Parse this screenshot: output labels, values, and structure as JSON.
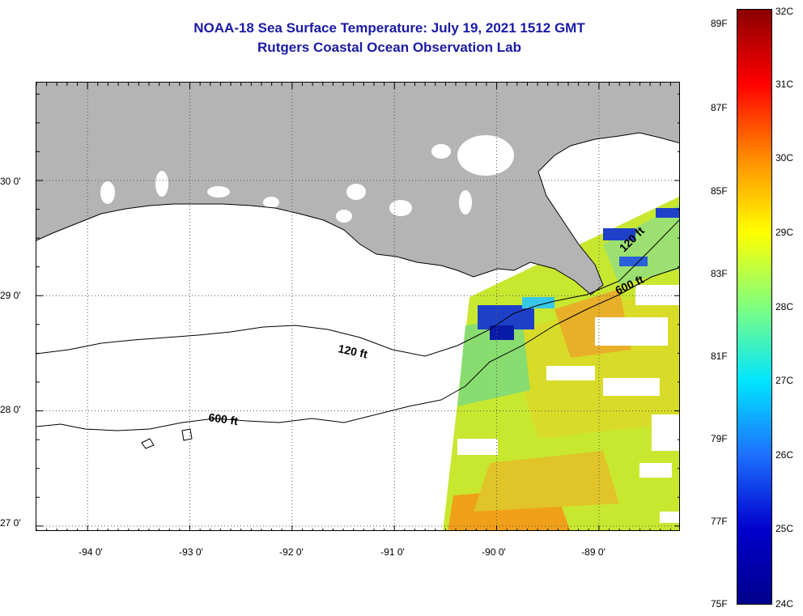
{
  "header": {
    "title": "NOAA-18 Sea Surface Temperature:  July 19, 2021 1512 GMT",
    "subtitle": "Rutgers Coastal Ocean Observation Lab"
  },
  "map": {
    "lon_range": [
      -94.5,
      -88.2
    ],
    "lat_range": [
      26.95,
      30.85
    ],
    "lat_ticks": [
      "27 0'",
      "28 0'",
      "29 0'",
      "30 0'"
    ],
    "lon_ticks": [
      "-94 0'",
      "-93 0'",
      "-92 0'",
      "-91 0'",
      "-90 0'",
      "-89 0'"
    ],
    "contours": [
      {
        "label": "120 ft"
      },
      {
        "label": "600 ft"
      },
      {
        "label": "120 ft"
      },
      {
        "label": "600 ft"
      }
    ],
    "colors": {
      "land": "#b4b4b4",
      "ocean_nodata": "#ffffff",
      "cold": "#0a1aa8",
      "cool": "#36c8e8",
      "mid": "#c8e830",
      "warm": "#f0a018"
    }
  },
  "colorbar": {
    "fahrenheit_labels": [
      "89F",
      "87F",
      "85F",
      "83F",
      "81F",
      "79F",
      "77F",
      "75F"
    ],
    "celsius_labels": [
      "32C",
      "31C",
      "30C",
      "29C",
      "28C",
      "27C",
      "26C",
      "25C",
      "24C"
    ],
    "stops": [
      "#8b0000",
      "#ff0000",
      "#ff8c00",
      "#ffff00",
      "#7fff7f",
      "#00e5ff",
      "#1e6fff",
      "#0000cd",
      "#00008b"
    ]
  }
}
